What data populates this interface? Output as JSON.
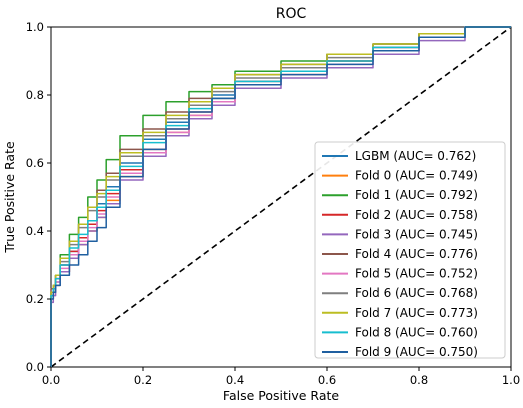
{
  "chart_data": {
    "type": "line",
    "title": "ROC",
    "xlabel": "False Positive Rate",
    "ylabel": "True Positive Rate",
    "xlim": [
      0.0,
      1.0
    ],
    "ylim": [
      0.0,
      1.0
    ],
    "xticks": [
      "0.0",
      "0.2",
      "0.4",
      "0.6",
      "0.8",
      "1.0"
    ],
    "yticks": [
      "0.0",
      "0.2",
      "0.4",
      "0.6",
      "0.8",
      "1.0"
    ],
    "grid": false,
    "legend_position": "bottom-right",
    "series": [
      {
        "name": "LGBM (AUC= 0.762)",
        "color": "#1f77b4",
        "x": [
          0,
          0,
          0.005,
          0.01,
          0.02,
          0.04,
          0.06,
          0.08,
          0.1,
          0.12,
          0.15,
          0.2,
          0.25,
          0.3,
          0.35,
          0.4,
          0.5,
          0.6,
          0.7,
          0.8,
          0.9,
          1.0
        ],
        "y": [
          0,
          0.2,
          0.21,
          0.22,
          0.25,
          0.3,
          0.34,
          0.38,
          0.43,
          0.48,
          0.53,
          0.6,
          0.67,
          0.72,
          0.77,
          0.8,
          0.84,
          0.87,
          0.9,
          0.94,
          0.97,
          1.0
        ]
      },
      {
        "name": "Fold 0 (AUC= 0.749)",
        "color": "#ff7f0e",
        "x": [
          0,
          0,
          0.005,
          0.01,
          0.02,
          0.04,
          0.06,
          0.08,
          0.1,
          0.12,
          0.15,
          0.2,
          0.25,
          0.3,
          0.35,
          0.4,
          0.5,
          0.6,
          0.7,
          0.8,
          0.9,
          1.0
        ],
        "y": [
          0,
          0.18,
          0.2,
          0.22,
          0.24,
          0.28,
          0.32,
          0.36,
          0.4,
          0.44,
          0.49,
          0.56,
          0.63,
          0.69,
          0.74,
          0.78,
          0.83,
          0.86,
          0.9,
          0.93,
          0.98,
          1.0
        ]
      },
      {
        "name": "Fold 1 (AUC= 0.792)",
        "color": "#2ca02c",
        "x": [
          0,
          0,
          0.005,
          0.01,
          0.02,
          0.04,
          0.06,
          0.08,
          0.1,
          0.12,
          0.15,
          0.2,
          0.25,
          0.3,
          0.35,
          0.4,
          0.5,
          0.6,
          0.7,
          0.8,
          0.9,
          1.0
        ],
        "y": [
          0,
          0.2,
          0.22,
          0.24,
          0.27,
          0.33,
          0.39,
          0.44,
          0.5,
          0.55,
          0.61,
          0.68,
          0.74,
          0.78,
          0.81,
          0.83,
          0.87,
          0.9,
          0.92,
          0.95,
          0.98,
          1.0
        ]
      },
      {
        "name": "Fold 2 (AUC= 0.758)",
        "color": "#d62728",
        "x": [
          0,
          0,
          0.005,
          0.01,
          0.02,
          0.04,
          0.06,
          0.08,
          0.1,
          0.12,
          0.15,
          0.2,
          0.25,
          0.3,
          0.35,
          0.4,
          0.5,
          0.6,
          0.7,
          0.8,
          0.9,
          1.0
        ],
        "y": [
          0,
          0.19,
          0.21,
          0.23,
          0.26,
          0.3,
          0.34,
          0.38,
          0.42,
          0.46,
          0.51,
          0.58,
          0.64,
          0.7,
          0.75,
          0.79,
          0.84,
          0.87,
          0.9,
          0.94,
          0.97,
          1.0
        ]
      },
      {
        "name": "Fold 3 (AUC= 0.745)",
        "color": "#9467bd",
        "x": [
          0,
          0,
          0.005,
          0.01,
          0.02,
          0.04,
          0.06,
          0.08,
          0.1,
          0.12,
          0.15,
          0.2,
          0.25,
          0.3,
          0.35,
          0.4,
          0.5,
          0.6,
          0.7,
          0.8,
          0.9,
          1.0
        ],
        "y": [
          0,
          0.17,
          0.19,
          0.21,
          0.24,
          0.28,
          0.32,
          0.36,
          0.4,
          0.44,
          0.48,
          0.55,
          0.62,
          0.68,
          0.73,
          0.77,
          0.82,
          0.85,
          0.88,
          0.92,
          0.96,
          1.0
        ]
      },
      {
        "name": "Fold 4 (AUC= 0.776)",
        "color": "#8c564b",
        "x": [
          0,
          0,
          0.005,
          0.01,
          0.02,
          0.04,
          0.06,
          0.08,
          0.1,
          0.12,
          0.15,
          0.2,
          0.25,
          0.3,
          0.35,
          0.4,
          0.5,
          0.6,
          0.7,
          0.8,
          0.9,
          1.0
        ],
        "y": [
          0,
          0.22,
          0.23,
          0.24,
          0.27,
          0.32,
          0.37,
          0.42,
          0.47,
          0.52,
          0.57,
          0.64,
          0.7,
          0.75,
          0.79,
          0.82,
          0.86,
          0.89,
          0.92,
          0.95,
          0.98,
          1.0
        ]
      },
      {
        "name": "Fold 5 (AUC= 0.752)",
        "color": "#e377c2",
        "x": [
          0,
          0,
          0.005,
          0.01,
          0.02,
          0.04,
          0.06,
          0.08,
          0.1,
          0.12,
          0.15,
          0.2,
          0.25,
          0.3,
          0.35,
          0.4,
          0.5,
          0.6,
          0.7,
          0.8,
          0.9,
          1.0
        ],
        "y": [
          0,
          0.18,
          0.2,
          0.22,
          0.25,
          0.29,
          0.33,
          0.37,
          0.41,
          0.45,
          0.5,
          0.57,
          0.63,
          0.69,
          0.74,
          0.78,
          0.83,
          0.86,
          0.89,
          0.93,
          0.97,
          1.0
        ]
      },
      {
        "name": "Fold 6 (AUC= 0.768)",
        "color": "#7f7f7f",
        "x": [
          0,
          0,
          0.005,
          0.01,
          0.02,
          0.04,
          0.06,
          0.08,
          0.1,
          0.12,
          0.15,
          0.2,
          0.25,
          0.3,
          0.35,
          0.4,
          0.5,
          0.6,
          0.7,
          0.8,
          0.9,
          1.0
        ],
        "y": [
          0,
          0.21,
          0.22,
          0.24,
          0.27,
          0.31,
          0.36,
          0.41,
          0.46,
          0.5,
          0.55,
          0.62,
          0.68,
          0.73,
          0.77,
          0.81,
          0.85,
          0.88,
          0.91,
          0.94,
          0.97,
          1.0
        ]
      },
      {
        "name": "Fold 7 (AUC= 0.773)",
        "color": "#bcbd22",
        "x": [
          0,
          0,
          0.005,
          0.01,
          0.02,
          0.04,
          0.06,
          0.08,
          0.1,
          0.12,
          0.15,
          0.2,
          0.25,
          0.3,
          0.35,
          0.4,
          0.5,
          0.6,
          0.7,
          0.8,
          0.9,
          1.0
        ],
        "y": [
          0,
          0.2,
          0.22,
          0.24,
          0.27,
          0.32,
          0.37,
          0.42,
          0.47,
          0.51,
          0.56,
          0.63,
          0.69,
          0.74,
          0.78,
          0.82,
          0.86,
          0.89,
          0.92,
          0.95,
          0.98,
          1.0
        ]
      },
      {
        "name": "Fold 8 (AUC= 0.760)",
        "color": "#17becf",
        "x": [
          0,
          0,
          0.005,
          0.01,
          0.02,
          0.04,
          0.06,
          0.08,
          0.1,
          0.12,
          0.15,
          0.2,
          0.25,
          0.3,
          0.35,
          0.4,
          0.5,
          0.6,
          0.7,
          0.8,
          0.9,
          1.0
        ],
        "y": [
          0,
          0.19,
          0.21,
          0.23,
          0.26,
          0.3,
          0.35,
          0.39,
          0.43,
          0.47,
          0.52,
          0.59,
          0.66,
          0.71,
          0.76,
          0.79,
          0.84,
          0.87,
          0.9,
          0.94,
          0.97,
          1.0
        ]
      },
      {
        "name": "Fold 9 (AUC= 0.750)",
        "color": "#1f5fa0",
        "x": [
          0,
          0,
          0.005,
          0.01,
          0.02,
          0.04,
          0.06,
          0.08,
          0.1,
          0.12,
          0.15,
          0.2,
          0.25,
          0.3,
          0.35,
          0.4,
          0.5,
          0.6,
          0.7,
          0.8,
          0.9,
          1.0
        ],
        "y": [
          0,
          0.18,
          0.2,
          0.22,
          0.24,
          0.27,
          0.3,
          0.33,
          0.37,
          0.41,
          0.47,
          0.56,
          0.64,
          0.7,
          0.75,
          0.79,
          0.83,
          0.86,
          0.89,
          0.93,
          0.97,
          1.0
        ]
      }
    ],
    "reference_line": {
      "x": [
        0,
        1
      ],
      "y": [
        0,
        1
      ],
      "color": "#000000",
      "style": "dashed"
    }
  }
}
